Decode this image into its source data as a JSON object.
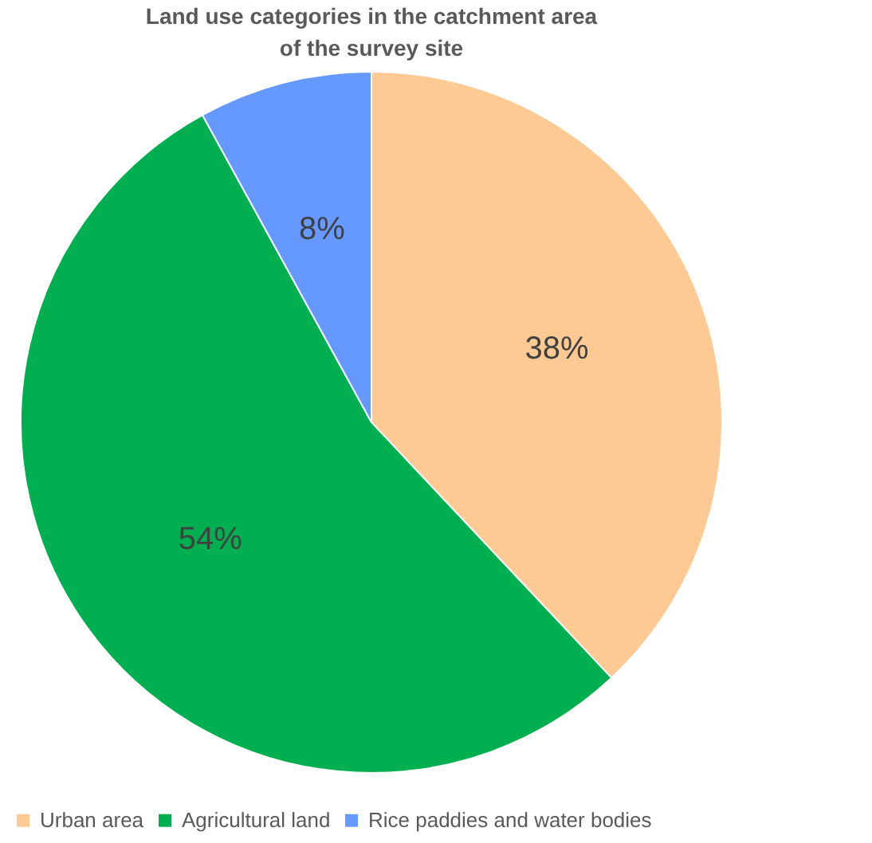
{
  "chart_data": {
    "type": "pie",
    "title": "Land use categories in the catchment area of the survey site",
    "categories": [
      "Urban area",
      "Agricultural land",
      "Rice paddies and water bodies"
    ],
    "values": [
      38,
      54,
      8
    ],
    "colors": [
      "#ffc993",
      "#00b050",
      "#6699ff"
    ],
    "value_labels": [
      "38%",
      "54%",
      "8%"
    ],
    "legend": "bottom"
  }
}
